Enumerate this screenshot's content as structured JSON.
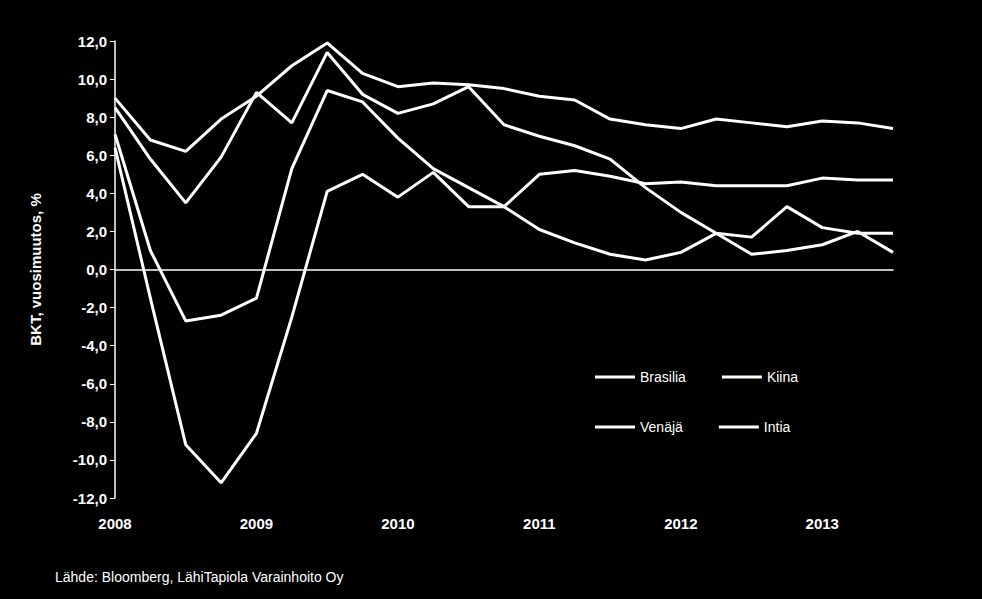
{
  "chart_data": {
    "type": "line",
    "y_label": "BKT, vuosimuutos, %",
    "source": "Lähde: Bloomberg, LähiTapiola Varainhoito Oy",
    "categories": [
      "2008",
      null,
      null,
      null,
      "2009",
      null,
      null,
      null,
      "2010",
      null,
      null,
      null,
      "2011",
      null,
      null,
      null,
      "2012",
      null,
      null,
      null,
      "2013",
      null,
      null
    ],
    "series": [
      {
        "name": "Brasilia",
        "color": "#ffffff",
        "values": [
          7.1,
          1.0,
          -2.7,
          -2.4,
          -1.5,
          5.3,
          9.4,
          8.8,
          6.9,
          5.3,
          4.3,
          3.3,
          2.1,
          1.4,
          0.8,
          0.5,
          0.9,
          1.9,
          0.8,
          1.0,
          1.3,
          2.0,
          0.9
        ]
      },
      {
        "name": "Kiina",
        "color": "#ffffff",
        "values": [
          9.0,
          6.8,
          6.2,
          7.9,
          9.1,
          10.7,
          11.9,
          10.3,
          9.6,
          9.8,
          9.7,
          9.5,
          9.1,
          8.9,
          7.9,
          7.6,
          7.4,
          7.9,
          7.7,
          7.5,
          7.8,
          7.7,
          7.4
        ]
      },
      {
        "name": "Venäjä",
        "color": "#ffffff",
        "values": [
          6.4,
          -1.5,
          -9.2,
          -11.2,
          -8.6,
          -2.5,
          4.1,
          5.0,
          3.8,
          5.1,
          3.3,
          3.3,
          5.0,
          5.2,
          4.9,
          4.5,
          4.6,
          4.4,
          4.4,
          4.4,
          4.8,
          4.7,
          4.7
        ]
      },
      {
        "name": "Intia",
        "color": "#ffffff",
        "values": [
          8.5,
          5.8,
          3.5,
          5.9,
          9.3,
          7.7,
          11.4,
          9.2,
          8.2,
          8.7,
          9.6,
          7.6,
          7.0,
          6.5,
          5.8,
          4.3,
          3.0,
          1.9,
          1.7,
          3.3,
          2.2,
          1.9,
          1.9
        ]
      }
    ],
    "ylim": [
      -12,
      12
    ],
    "yticks": [
      {
        "value": -12,
        "label": "-12,0"
      },
      {
        "value": -10,
        "label": "-10,0"
      },
      {
        "value": -8,
        "label": "-8,0"
      },
      {
        "value": -6,
        "label": "-6,0"
      },
      {
        "value": -4,
        "label": "-4,0"
      },
      {
        "value": -2,
        "label": "-2,0"
      },
      {
        "value": 0,
        "label": "0,0"
      },
      {
        "value": 2,
        "label": "2,0"
      },
      {
        "value": 4,
        "label": "4,0"
      },
      {
        "value": 6,
        "label": "6,0"
      },
      {
        "value": 8,
        "label": "8,0"
      },
      {
        "value": 10,
        "label": "10,0"
      },
      {
        "value": 12,
        "label": "12,0"
      }
    ],
    "grid": false,
    "legend": "lower right"
  }
}
